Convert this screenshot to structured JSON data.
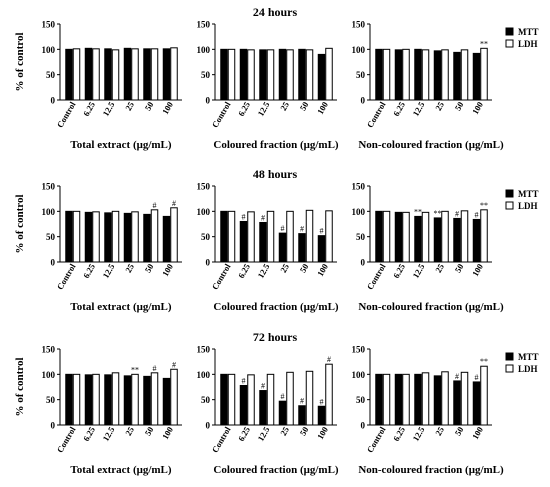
{
  "chart_data": {
    "type": "bar",
    "ylabel": "% of control",
    "ylim": [
      0,
      150
    ],
    "yticks": [
      0,
      50,
      100,
      150
    ],
    "categories": [
      "Control",
      "6.25",
      "12.5",
      "25",
      "50",
      "100"
    ],
    "legend": [
      "MTT",
      "LDH"
    ],
    "colors": {
      "MTT": "#000000",
      "LDH": "#ffffff"
    },
    "rows": [
      {
        "title": "24 hours",
        "legend": true,
        "panels": [
          {
            "xlabel": "Total extract (μg/mL)",
            "series": [
              {
                "name": "MTT",
                "values": [
                  100,
                  102,
                  101,
                  102,
                  101,
                  101
                ],
                "marks": [
                  "",
                  "",
                  "",
                  "",
                  "",
                  ""
                ]
              },
              {
                "name": "LDH",
                "values": [
                  101,
                  101,
                  99,
                  101,
                  101,
                  103
                ],
                "marks": [
                  "",
                  "",
                  "",
                  "",
                  "",
                  ""
                ]
              }
            ]
          },
          {
            "xlabel": "Coloured fraction (μg/mL)",
            "series": [
              {
                "name": "MTT",
                "values": [
                  100,
                  100,
                  99,
                  100,
                  100,
                  90
                ],
                "marks": [
                  "",
                  "",
                  "",
                  "",
                  "",
                  ""
                ]
              },
              {
                "name": "LDH",
                "values": [
                  100,
                  99,
                  99,
                  99,
                  99,
                  102
                ],
                "marks": [
                  "",
                  "",
                  "",
                  "",
                  "",
                  ""
                ]
              }
            ]
          },
          {
            "xlabel": "Non-coloured fraction (μg/mL)",
            "series": [
              {
                "name": "MTT",
                "values": [
                  100,
                  99,
                  100,
                  97,
                  94,
                  92
                ],
                "marks": [
                  "",
                  "",
                  "",
                  "",
                  "",
                  ""
                ]
              },
              {
                "name": "LDH",
                "values": [
                  100,
                  100,
                  99,
                  99,
                  99,
                  102
                ],
                "marks": [
                  "",
                  "",
                  "",
                  "",
                  "",
                  "**"
                ]
              }
            ]
          }
        ]
      },
      {
        "title": "48 hours",
        "legend": true,
        "panels": [
          {
            "xlabel": "Total extract (μg/mL)",
            "series": [
              {
                "name": "MTT",
                "values": [
                  100,
                  98,
                  97,
                  96,
                  94,
                  90
                ],
                "marks": [
                  "",
                  "",
                  "",
                  "",
                  "",
                  ""
                ]
              },
              {
                "name": "LDH",
                "values": [
                  100,
                  99,
                  100,
                  99,
                  103,
                  107
                ],
                "marks": [
                  "",
                  "",
                  "",
                  "",
                  "#",
                  "#"
                ]
              }
            ]
          },
          {
            "xlabel": "Coloured fraction (μg/mL)",
            "series": [
              {
                "name": "MTT",
                "values": [
                  100,
                  80,
                  78,
                  57,
                  56,
                  52
                ],
                "marks": [
                  "",
                  "#",
                  "#",
                  "#",
                  "#",
                  "#"
                ]
              },
              {
                "name": "LDH",
                "values": [
                  100,
                  99,
                  100,
                  100,
                  102,
                  101
                ],
                "marks": [
                  "",
                  "",
                  "",
                  "",
                  "",
                  ""
                ]
              }
            ]
          },
          {
            "xlabel": "Non-coloured fraction (μg/mL)",
            "series": [
              {
                "name": "MTT",
                "values": [
                  100,
                  98,
                  90,
                  87,
                  86,
                  84
                ],
                "marks": [
                  "",
                  "",
                  "**",
                  "**",
                  "#",
                  "#"
                ]
              },
              {
                "name": "LDH",
                "values": [
                  100,
                  98,
                  98,
                  100,
                  101,
                  103
                ],
                "marks": [
                  "",
                  "",
                  "",
                  "",
                  "",
                  "**"
                ]
              }
            ]
          }
        ]
      },
      {
        "title": "72 hours",
        "legend": true,
        "panels": [
          {
            "xlabel": "Total extract (μg/mL)",
            "series": [
              {
                "name": "MTT",
                "values": [
                  100,
                  99,
                  99,
                  97,
                  96,
                  92
                ],
                "marks": [
                  "",
                  "",
                  "",
                  "",
                  "",
                  ""
                ]
              },
              {
                "name": "LDH",
                "values": [
                  100,
                  100,
                  103,
                  100,
                  103,
                  110
                ],
                "marks": [
                  "",
                  "",
                  "",
                  "**",
                  "#",
                  "#"
                ]
              }
            ]
          },
          {
            "xlabel": "Coloured fraction (μg/mL)",
            "series": [
              {
                "name": "MTT",
                "values": [
                  100,
                  78,
                  68,
                  47,
                  38,
                  37
                ],
                "marks": [
                  "",
                  "#",
                  "#",
                  "#",
                  "#",
                  "#"
                ]
              },
              {
                "name": "LDH",
                "values": [
                  100,
                  99,
                  100,
                  104,
                  106,
                  120
                ],
                "marks": [
                  "",
                  "",
                  "",
                  "",
                  "",
                  "#"
                ]
              }
            ]
          },
          {
            "xlabel": "Non-coloured fraction (μg/mL)",
            "series": [
              {
                "name": "MTT",
                "values": [
                  100,
                  100,
                  100,
                  97,
                  87,
                  85
                ],
                "marks": [
                  "",
                  "",
                  "",
                  "",
                  "#",
                  "#"
                ]
              },
              {
                "name": "LDH",
                "values": [
                  100,
                  100,
                  103,
                  105,
                  104,
                  116
                ],
                "marks": [
                  "",
                  "",
                  "",
                  "",
                  "",
                  "**"
                ]
              }
            ]
          }
        ]
      }
    ]
  }
}
